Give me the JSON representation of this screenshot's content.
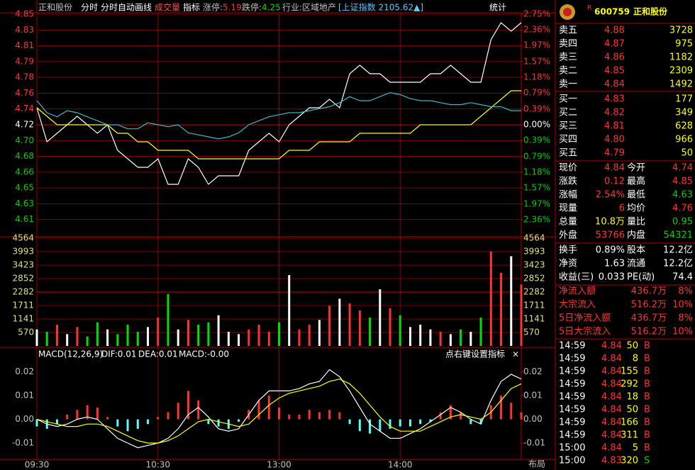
{
  "header": {
    "name": "正和股份",
    "mode": "分时",
    "auto_line": "分时自动画线",
    "volume_label": "成交量",
    "indicator": "指标",
    "limit_up_label": "涨停:",
    "limit_up": "5.19",
    "limit_down_label": "跌停:",
    "limit_down": "4.25",
    "industry": "行业:区域地产",
    "index": "[上证指数 2105.62▲]",
    "stats": "统计"
  },
  "macd_header": {
    "title": "MACD(12,26,9)",
    "dif": "DIF:0.01",
    "dea": "DEA:0.01",
    "macd": "MACD:-0.00",
    "hint": "点右键设置指标",
    "close": "×"
  },
  "layout_button": "布局",
  "chart_data": [
    {
      "type": "line",
      "xlim": [
        0,
        240
      ],
      "xticks": [
        {
          "value": 0,
          "label": "09:30"
        },
        {
          "value": 60,
          "label": "10:30"
        },
        {
          "value": 120,
          "label": "13:00"
        },
        {
          "value": 180,
          "label": "14:00"
        }
      ],
      "x": [
        0,
        5,
        10,
        15,
        20,
        25,
        30,
        35,
        40,
        45,
        50,
        55,
        60,
        65,
        70,
        75,
        80,
        85,
        90,
        95,
        100,
        105,
        110,
        115,
        120,
        125,
        130,
        135,
        140,
        145,
        150,
        155,
        160,
        165,
        170,
        175,
        180,
        185,
        190,
        195,
        200,
        205,
        210,
        215,
        220,
        225,
        230,
        235,
        240
      ],
      "ylim": [
        4.59,
        4.85
      ],
      "yticks": [
        4.85,
        {
          "value": 4.8314,
          "label": "4.83"
        },
        {
          "value": 4.8129,
          "label": "4.81"
        },
        {
          "value": 4.7943,
          "label": "4.79"
        },
        {
          "value": 4.7757,
          "label": "4.78"
        },
        {
          "value": 4.7571,
          "label": "4.76"
        },
        {
          "value": 4.7386,
          "label": "4.74"
        },
        4.72,
        {
          "value": 4.7014,
          "label": "4.70"
        },
        {
          "value": 4.6829,
          "label": "4.68"
        },
        {
          "value": 4.6643,
          "label": "4.66"
        },
        {
          "value": 4.6457,
          "label": "4.65"
        },
        {
          "value": 4.6271,
          "label": "4.63"
        },
        {
          "value": 4.6086,
          "label": "4.61"
        }
      ],
      "y2lim": [
        -2.75,
        2.75
      ],
      "y2ticks": [
        {
          "value": 2.75,
          "label": "2.75%"
        },
        {
          "value": 2.36,
          "label": "2.36%"
        },
        {
          "value": 1.97,
          "label": "1.97%"
        },
        {
          "value": 1.57,
          "label": "1.57%"
        },
        {
          "value": 1.18,
          "label": "1.18%"
        },
        {
          "value": 0.79,
          "label": "0.79%"
        },
        {
          "value": 0.39,
          "label": "0.39%"
        },
        {
          "value": 0,
          "label": "0.00%"
        },
        {
          "value": -0.39,
          "label": "0.39%"
        },
        {
          "value": -0.79,
          "label": "0.79%"
        },
        {
          "value": -1.18,
          "label": "1.18%"
        },
        {
          "value": -1.57,
          "label": "1.57%"
        },
        {
          "value": -1.97,
          "label": "1.97%"
        },
        {
          "value": -2.36,
          "label": "2.36%"
        }
      ],
      "grid": true,
      "series": [
        {
          "color": "#ffffff",
          "values": [
            4.74,
            4.7,
            4.71,
            4.72,
            4.73,
            4.72,
            4.71,
            4.72,
            4.69,
            4.68,
            4.67,
            4.67,
            4.68,
            4.65,
            4.65,
            4.68,
            4.67,
            4.65,
            4.66,
            4.66,
            4.66,
            4.69,
            4.7,
            4.71,
            4.7,
            4.72,
            4.73,
            4.74,
            4.74,
            4.75,
            4.74,
            4.78,
            4.79,
            4.78,
            4.78,
            4.77,
            4.77,
            4.77,
            4.77,
            4.78,
            4.78,
            4.79,
            4.78,
            4.77,
            4.77,
            4.82,
            4.84,
            4.83,
            4.84
          ]
        },
        {
          "color": "#ffff00",
          "values": [
            4.74,
            4.73,
            4.72,
            4.72,
            4.72,
            4.72,
            4.72,
            4.72,
            4.71,
            4.71,
            4.7,
            4.7,
            4.69,
            4.69,
            4.69,
            4.69,
            4.68,
            4.68,
            4.68,
            4.68,
            4.68,
            4.68,
            4.68,
            4.68,
            4.68,
            4.69,
            4.69,
            4.69,
            4.7,
            4.7,
            4.7,
            4.7,
            4.71,
            4.71,
            4.71,
            4.71,
            4.71,
            4.71,
            4.72,
            4.72,
            4.72,
            4.72,
            4.72,
            4.72,
            4.73,
            4.74,
            4.75,
            4.76,
            4.76
          ]
        },
        {
          "color": "#3fb8c8",
          "axis": "y2",
          "values": [
            0.6,
            0.3,
            0.2,
            0.35,
            0.3,
            0.2,
            0.1,
            0.0,
            0.0,
            -0.1,
            -0.1,
            0.05,
            0.0,
            -0.05,
            0.0,
            -0.2,
            -0.25,
            -0.3,
            -0.35,
            -0.3,
            -0.2,
            0.0,
            0.1,
            0.2,
            0.25,
            0.3,
            0.3,
            0.35,
            0.4,
            0.45,
            0.55,
            0.7,
            0.6,
            0.6,
            0.7,
            0.8,
            0.75,
            0.65,
            0.6,
            0.6,
            0.55,
            0.5,
            0.5,
            0.55,
            0.5,
            0.45,
            0.45,
            0.35,
            0.35
          ]
        }
      ]
    },
    {
      "type": "bar",
      "xlim": [
        0,
        240
      ],
      "x": [
        0,
        5,
        10,
        15,
        20,
        25,
        30,
        35,
        40,
        45,
        50,
        55,
        60,
        65,
        70,
        75,
        80,
        85,
        90,
        95,
        100,
        105,
        110,
        115,
        120,
        125,
        130,
        135,
        140,
        145,
        150,
        155,
        160,
        165,
        170,
        175,
        180,
        185,
        190,
        195,
        200,
        205,
        210,
        215,
        220,
        225,
        230,
        235,
        240
      ],
      "ylim": [
        0,
        4564
      ],
      "yticks": [
        570,
        1141,
        1711,
        2282,
        2852,
        3423,
        3993,
        4564
      ],
      "grid": true,
      "values": [
        700,
        600,
        900,
        500,
        800,
        400,
        1000,
        700,
        500,
        900,
        600,
        800,
        1200,
        2200,
        700,
        1100,
        900,
        1000,
        1300,
        600,
        500,
        700,
        900,
        600,
        1000,
        3000,
        700,
        900,
        1100,
        1700,
        2000,
        1800,
        1500,
        1200,
        2400,
        1600,
        1300,
        800,
        900,
        700,
        600,
        500,
        700,
        600,
        1200,
        4000,
        3100,
        3800,
        2600
      ],
      "colors": [
        "#ffffff",
        "#00e000",
        "#ff3232",
        "#ffffff",
        "#ff3232",
        "#00e000",
        "#00e000",
        "#ffffff",
        "#00e000",
        "#00e000",
        "#00e000",
        "#ffffff",
        "#ff3232",
        "#00e000",
        "#ffffff",
        "#ff3232",
        "#00e000",
        "#00e000",
        "#ffffff",
        "#ffffff",
        "#ffffff",
        "#ff3232",
        "#ff3232",
        "#ff3232",
        "#00e000",
        "#ffffff",
        "#ff3232",
        "#ff3232",
        "#ffffff",
        "#ff3232",
        "#ffffff",
        "#ff3232",
        "#ff3232",
        "#00e000",
        "#ffffff",
        "#ff3232",
        "#00e000",
        "#ffffff",
        "#ffffff",
        "#ffffff",
        "#ff3232",
        "#ffffff",
        "#00e000",
        "#ffffff",
        "#00e000",
        "#ff3232",
        "#ff3232",
        "#ffffff",
        "#ff3232"
      ]
    },
    {
      "type": "line",
      "xlim": [
        0,
        240
      ],
      "x": [
        0,
        5,
        10,
        15,
        20,
        25,
        30,
        35,
        40,
        45,
        50,
        55,
        60,
        65,
        70,
        75,
        80,
        85,
        90,
        95,
        100,
        105,
        110,
        115,
        120,
        125,
        130,
        135,
        140,
        145,
        150,
        155,
        160,
        165,
        170,
        175,
        180,
        185,
        190,
        195,
        200,
        205,
        210,
        215,
        220,
        225,
        230,
        235,
        240
      ],
      "ylim": [
        -0.016,
        0.025
      ],
      "yticks": [
        0.02,
        0.01,
        {
          "value": 0,
          "label": "0.00"
        },
        -0.01
      ],
      "grid": false,
      "series": [
        {
          "kind": "bar",
          "color": "#ff3232",
          "negative_color": "#54ffff",
          "values": [
            -0.003,
            -0.004,
            -0.002,
            0.002,
            0.004,
            0.006,
            0.005,
            0.001,
            -0.003,
            -0.005,
            -0.004,
            -0.002,
            0.001,
            0.003,
            0.007,
            0.012,
            0.008,
            -0.002,
            -0.003,
            -0.004,
            -0.001,
            0.004,
            0.008,
            0.01,
            0.005,
            0.002,
            0.002,
            0.004,
            0.003,
            0.004,
            0.003,
            -0.002,
            -0.005,
            -0.006,
            -0.005,
            -0.004,
            -0.003,
            -0.003,
            -0.002,
            -0.001,
            0.003,
            0.006,
            0.003,
            -0.002,
            -0.002,
            0.006,
            0.01,
            0.007,
            0.003
          ]
        },
        {
          "color": "#ffffff",
          "values": [
            0,
            -0.002,
            -0.003,
            -0.002,
            0,
            0.001,
            0,
            -0.004,
            -0.008,
            -0.01,
            -0.012,
            -0.011,
            -0.01,
            -0.008,
            -0.004,
            0.002,
            0.005,
            0.001,
            -0.004,
            -0.005,
            -0.004,
            0.002,
            0.008,
            0.012,
            0.012,
            0.012,
            0.013,
            0.015,
            0.016,
            0.021,
            0.018,
            0.012,
            0.005,
            -0.002,
            -0.005,
            -0.008,
            -0.008,
            -0.006,
            -0.004,
            -0.001,
            0.002,
            0.005,
            0.003,
            0,
            -0.002,
            0.008,
            0.016,
            0.019,
            0.017
          ]
        },
        {
          "color": "#ffff00",
          "values": [
            0,
            -0.001,
            -0.002,
            -0.003,
            -0.003,
            -0.002,
            -0.002,
            -0.003,
            -0.005,
            -0.007,
            -0.009,
            -0.01,
            -0.01,
            -0.009,
            -0.007,
            -0.004,
            -0.001,
            0,
            -0.001,
            -0.002,
            -0.003,
            -0.002,
            0.002,
            0.006,
            0.009,
            0.011,
            0.012,
            0.013,
            0.014,
            0.016,
            0.017,
            0.015,
            0.011,
            0.006,
            0.001,
            -0.003,
            -0.005,
            -0.005,
            -0.005,
            -0.003,
            -0.001,
            0.001,
            0.002,
            0.001,
            0,
            0.003,
            0.008,
            0.013,
            0.015
          ]
        }
      ]
    }
  ],
  "quote_panel": {
    "flag": "R",
    "code": "600759",
    "name": "正和股份",
    "asks": [
      [
        "卖五",
        "4.88",
        "3728"
      ],
      [
        "卖四",
        "4.87",
        "975"
      ],
      [
        "卖三",
        "4.86",
        "1182"
      ],
      [
        "卖二",
        "4.85",
        "2309"
      ],
      [
        "卖一",
        "4.84",
        "1492"
      ]
    ],
    "bids": [
      [
        "买一",
        "4.83",
        "177"
      ],
      [
        "买二",
        "4.82",
        "349"
      ],
      [
        "买三",
        "4.81",
        "628"
      ],
      [
        "买四",
        "4.80",
        "966"
      ],
      [
        "买五",
        "4.79",
        "50"
      ]
    ],
    "stats": [
      [
        "现价",
        "4.84",
        "今开",
        "4.74"
      ],
      [
        "涨跌",
        "0.12",
        "最高",
        "4.85"
      ],
      [
        "涨幅",
        "2.54%",
        "最低",
        "4.63"
      ],
      [
        "现量",
        "6",
        "均价",
        "4.76"
      ],
      [
        "总量",
        "10.8万",
        "量比",
        "0.95"
      ],
      [
        "外盘",
        "53766",
        "内盘",
        "54321"
      ]
    ],
    "shares": [
      [
        "换手",
        "0.89%",
        "股本",
        "12.2亿"
      ],
      [
        "净资",
        "1.63",
        "流通",
        "12.2亿"
      ],
      [
        "收益(三)",
        "0.033",
        "PE(动)",
        "74.4"
      ]
    ],
    "flows": [
      [
        "净流入额",
        "436.7万",
        "8%"
      ],
      [
        "大宗流入",
        "516.2万",
        "10%"
      ],
      [
        "5日净流入额",
        "436.7万",
        "8%"
      ],
      [
        "5日大宗流入",
        "516.2万",
        "10%"
      ]
    ],
    "trades": [
      [
        "14:59",
        "4.84",
        "50",
        "B"
      ],
      [
        "14:59",
        "4.84",
        "8",
        "B"
      ],
      [
        "14:59",
        "4.84",
        "155",
        "B"
      ],
      [
        "14:59",
        "4.84",
        "292",
        "B"
      ],
      [
        "14:59",
        "4.84",
        "18",
        "B"
      ],
      [
        "14:59",
        "4.84",
        "50",
        "B"
      ],
      [
        "14:59",
        "4.84",
        "166",
        "B"
      ],
      [
        "14:59",
        "4.84",
        "311",
        "B"
      ],
      [
        "15:00",
        "4.84",
        "5",
        "B"
      ],
      [
        "15:00",
        "4.83",
        "320",
        "S"
      ]
    ]
  }
}
